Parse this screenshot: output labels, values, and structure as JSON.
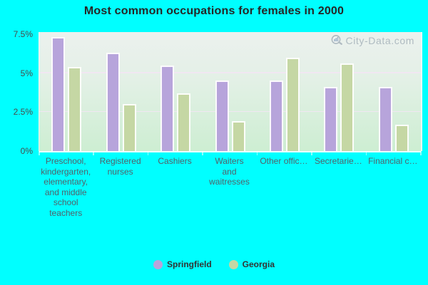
{
  "title": "Most common occupations for females in 2000",
  "watermark": {
    "text": "City-Data.com",
    "icon": "magnifier-chart-icon"
  },
  "colors": {
    "background": "#00ffff",
    "springfield": "#b7a4db",
    "georgia": "#c5d7a4",
    "plot_top": "#ecf1ee",
    "plot_bottom": "#cdeed2"
  },
  "chart_data": {
    "type": "bar",
    "title": "Most common occupations for females in 2000",
    "categories": [
      "Preschool, kindergarten, elementary, and middle school teachers",
      "Registered nurses",
      "Cashiers",
      "Waiters and waitresses",
      "Other offic…",
      "Secretarie…",
      "Financial c…"
    ],
    "xtick_labels": [
      "Preschool,\nkindergarten,\nelementary,\nand middle\nschool\nteachers",
      "Registered\nnurses",
      "Cashiers",
      "Waiters\nand\nwaitresses",
      "Other offic…",
      "Secretarie…",
      "Financial c…"
    ],
    "series": [
      {
        "name": "Springfield",
        "color": "#b7a4db",
        "values": [
          7.3,
          6.3,
          5.5,
          4.5,
          4.5,
          4.1,
          4.1
        ]
      },
      {
        "name": "Georgia",
        "color": "#c5d7a4",
        "values": [
          5.4,
          3.0,
          3.7,
          1.9,
          6.0,
          5.6,
          1.7
        ]
      }
    ],
    "ylabel": "",
    "xlabel": "",
    "ylim": [
      0,
      7.5
    ],
    "yticks": [
      "7.5%",
      "5%",
      "2.5%",
      "0%"
    ],
    "ytick_values": [
      7.5,
      5,
      2.5,
      0
    ],
    "gridlines": [
      5,
      2.5
    ],
    "grid": "on",
    "legend_position": "bottom"
  }
}
